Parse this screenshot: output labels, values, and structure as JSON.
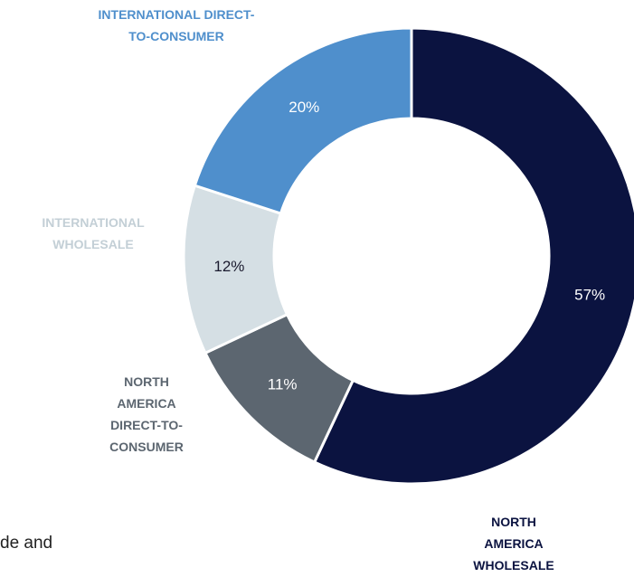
{
  "chart_data": {
    "type": "donut",
    "categories": [
      "NORTH AMERICA WHOLESALE",
      "NORTH AMERICA DIRECT-TO-CONSUMER",
      "INTERNATIONAL WHOLESALE",
      "INTERNATIONAL DIRECT-TO-CONSUMER"
    ],
    "values": [
      57,
      11,
      12,
      20
    ],
    "value_labels": [
      "57%",
      "11%",
      "12%",
      "20%"
    ],
    "colors": [
      "#0b1340",
      "#5c6670",
      "#d5dfe4",
      "#4f8fcc"
    ]
  },
  "body_text": "de and"
}
